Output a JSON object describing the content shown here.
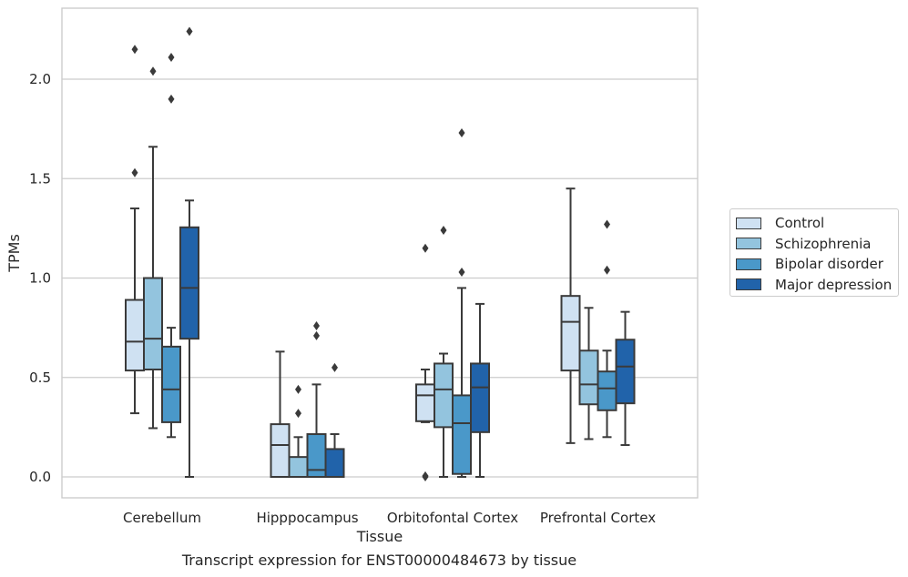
{
  "caption": "Transcript expression for ENST00000484673 by tissue",
  "colors": {
    "Control": "#cfe1f2",
    "Schizophrenia": "#93c4de",
    "Bipolar disorder": "#4a98c9",
    "Major depression": "#2163aa",
    "grid": "#cccccc",
    "frame": "#cccccc",
    "line": "#3a3a3a"
  },
  "chart_data": {
    "type": "boxplot",
    "xlabel": "Tissue",
    "ylabel": "TPMs",
    "ylim": [
      -0.11,
      2.36
    ],
    "yticks": [
      "0.0",
      "0.5",
      "1.0",
      "1.5",
      "2.0"
    ],
    "grid": true,
    "legend_position": "right-outside",
    "categories": [
      "Cerebellum",
      "Hipppocampus",
      "Orbitofontal Cortex",
      "Prefrontal Cortex"
    ],
    "series": [
      {
        "name": "Control",
        "boxes": [
          {
            "whislo": 0.32,
            "q1": 0.535,
            "med": 0.68,
            "q3": 0.89,
            "whishi": 1.35,
            "fliers": [
              1.53,
              2.15
            ]
          },
          {
            "whislo": 0.0,
            "q1": 0.0,
            "med": 0.16,
            "q3": 0.265,
            "whishi": 0.63,
            "fliers": []
          },
          {
            "whislo": 0.275,
            "q1": 0.28,
            "med": 0.41,
            "q3": 0.465,
            "whishi": 0.54,
            "fliers": [
              0.0,
              0.005,
              1.15
            ]
          },
          {
            "whislo": 0.17,
            "q1": 0.535,
            "med": 0.78,
            "q3": 0.91,
            "whishi": 1.45,
            "fliers": []
          }
        ]
      },
      {
        "name": "Schizophrenia",
        "boxes": [
          {
            "whislo": 0.245,
            "q1": 0.54,
            "med": 0.695,
            "q3": 1.0,
            "whishi": 1.66,
            "fliers": [
              2.04
            ]
          },
          {
            "whislo": 0.0,
            "q1": 0.0,
            "med": 0.0,
            "q3": 0.1,
            "whishi": 0.2,
            "fliers": [
              0.32,
              0.44
            ]
          },
          {
            "whislo": 0.0,
            "q1": 0.25,
            "med": 0.44,
            "q3": 0.57,
            "whishi": 0.62,
            "fliers": [
              1.24
            ]
          },
          {
            "whislo": 0.19,
            "q1": 0.365,
            "med": 0.465,
            "q3": 0.635,
            "whishi": 0.85,
            "fliers": []
          }
        ]
      },
      {
        "name": "Bipolar disorder",
        "boxes": [
          {
            "whislo": 0.2,
            "q1": 0.275,
            "med": 0.44,
            "q3": 0.655,
            "whishi": 0.75,
            "fliers": [
              1.9,
              2.11
            ]
          },
          {
            "whislo": 0.0,
            "q1": 0.0,
            "med": 0.035,
            "q3": 0.215,
            "whishi": 0.465,
            "fliers": [
              0.71,
              0.76
            ]
          },
          {
            "whislo": 0.0,
            "q1": 0.015,
            "med": 0.27,
            "q3": 0.41,
            "whishi": 0.95,
            "fliers": [
              1.03,
              1.73
            ]
          },
          {
            "whislo": 0.2,
            "q1": 0.335,
            "med": 0.445,
            "q3": 0.53,
            "whishi": 0.635,
            "fliers": [
              1.04,
              1.27
            ]
          }
        ]
      },
      {
        "name": "Major depression",
        "boxes": [
          {
            "whislo": 0.0,
            "q1": 0.695,
            "med": 0.95,
            "q3": 1.255,
            "whishi": 1.39,
            "fliers": [
              2.24
            ]
          },
          {
            "whislo": 0.0,
            "q1": 0.0,
            "med": 0.0,
            "q3": 0.14,
            "whishi": 0.215,
            "fliers": [
              0.55
            ]
          },
          {
            "whislo": 0.0,
            "q1": 0.225,
            "med": 0.45,
            "q3": 0.57,
            "whishi": 0.87,
            "fliers": []
          },
          {
            "whislo": 0.16,
            "q1": 0.37,
            "med": 0.555,
            "q3": 0.69,
            "whishi": 0.83,
            "fliers": []
          }
        ]
      }
    ]
  }
}
